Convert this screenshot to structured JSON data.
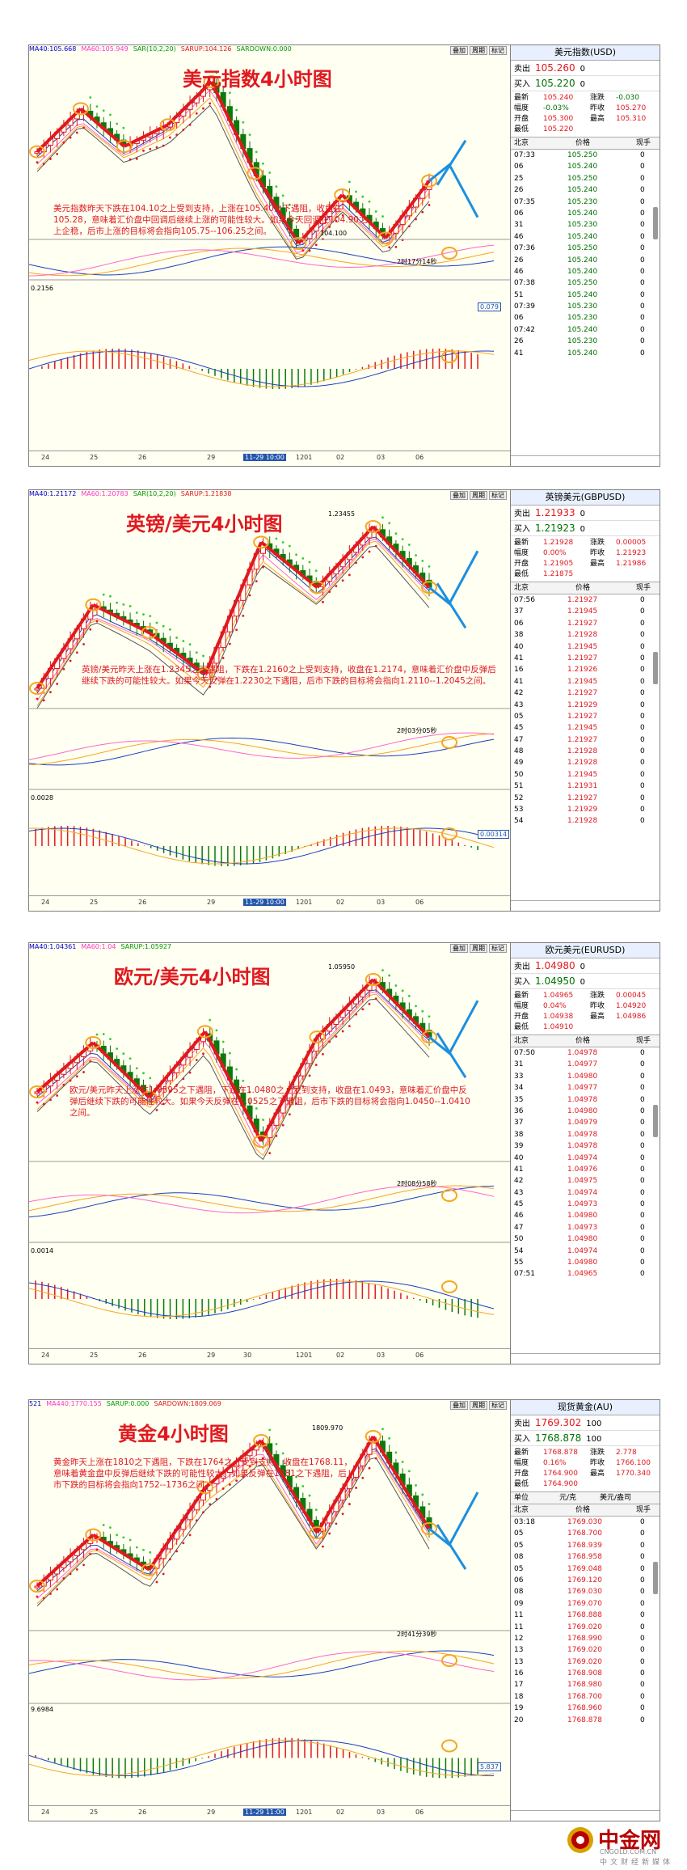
{
  "colors": {
    "red": "#e0191f",
    "green": "#007000",
    "blue": "#1b8fe0",
    "orange": "#f5a623"
  },
  "panels": [
    {
      "title": "美元指数4小时图",
      "topbar": [
        "MA40:105.668",
        "MA60:105.949",
        "SAR(10,2,20)",
        "SARUP:104.126",
        "SARDOWN:0.000"
      ],
      "buttons": [
        "叠加",
        "周期",
        "标记"
      ],
      "note": "美元指数昨天下跌在104.10之上受到支持，上涨在105.40之下遇阻，收盘在105.28，意味着汇价盘中回调后继续上涨的可能性较大。如果今天回调在104.90之上企稳，后市上涨的目标将会指向105.75--106.25之间。",
      "low_label": "104.100",
      "timestamp": "2时17分14秒",
      "macd_label": "0.2156",
      "macd_tag": "0.079",
      "xaxis": [
        "24",
        "25",
        "26",
        "29",
        "11-29 10:00",
        "1201",
        "02",
        "03",
        "06"
      ],
      "quote": {
        "name": "美元指数(USD)",
        "sell_label": "卖出",
        "sell": "105.260",
        "sell_tail": "0",
        "buy_label": "买入",
        "buy": "105.220",
        "buy_tail": "0",
        "stats": [
          [
            "最新",
            "105.240",
            "涨跌",
            "-0.030"
          ],
          [
            "幅度",
            "-0.03%",
            "昨收",
            "105.270"
          ],
          [
            "开盘",
            "105.300",
            "最高",
            "105.310"
          ],
          [
            "最低",
            "105.220",
            "",
            ""
          ]
        ],
        "cols": [
          "北京",
          "价格",
          "现手"
        ],
        "ticks": [
          [
            "07:33",
            "105.250",
            "0"
          ],
          [
            "06",
            "105.240",
            "0"
          ],
          [
            "25",
            "105.250",
            "0"
          ],
          [
            "26",
            "105.240",
            "0"
          ],
          [
            "07:35",
            "105.230",
            "0"
          ],
          [
            "06",
            "105.240",
            "0"
          ],
          [
            "31",
            "105.230",
            "0"
          ],
          [
            "46",
            "105.240",
            "0"
          ],
          [
            "07:36",
            "105.250",
            "0"
          ],
          [
            "26",
            "105.240",
            "0"
          ],
          [
            "46",
            "105.240",
            "0"
          ],
          [
            "07:38",
            "105.250",
            "0"
          ],
          [
            "51",
            "105.240",
            "0"
          ],
          [
            "07:39",
            "105.230",
            "0"
          ],
          [
            "06",
            "105.230",
            "0"
          ],
          [
            "07:42",
            "105.240",
            "0"
          ],
          [
            "26",
            "105.230",
            "0"
          ],
          [
            "41",
            "105.240",
            "0"
          ]
        ]
      }
    },
    {
      "title": "英镑/美元4小时图",
      "topbar": [
        "MA40:1.21172",
        "MA60:1.20783",
        "SAR(10,2,20)",
        "SARUP:1.21838"
      ],
      "buttons": [
        "叠加",
        "周期",
        "标记"
      ],
      "note": "英镑/美元昨天上涨在1.2345之下遇阻，下跌在1.2160之上受到支持，收盘在1.2174，意味着汇价盘中反弹后继续下跌的可能性较大。如果今天反弹在1.2230之下遇阻，后市下跌的目标将会指向1.2110--1.2045之间。",
      "high_label": "1.23455",
      "timestamp": "2时03分05秒",
      "macd_label": "0.0028",
      "macd_tag": "0.00314",
      "xaxis": [
        "24",
        "25",
        "26",
        "29",
        "11-29 10:00",
        "1201",
        "02",
        "03",
        "06"
      ],
      "quote": {
        "name": "英镑美元(GBPUSD)",
        "sell_label": "卖出",
        "sell": "1.21933",
        "sell_tail": "0",
        "buy_label": "买入",
        "buy": "1.21923",
        "buy_tail": "0",
        "stats": [
          [
            "最新",
            "1.21928",
            "涨跌",
            "0.00005"
          ],
          [
            "幅度",
            "0.00%",
            "昨收",
            "1.21923"
          ],
          [
            "开盘",
            "1.21905",
            "最高",
            "1.21986"
          ],
          [
            "最低",
            "1.21875",
            "",
            ""
          ]
        ],
        "cols": [
          "北京",
          "价格",
          "现手"
        ],
        "ticks": [
          [
            "07:56",
            "1.21927",
            "0"
          ],
          [
            "37",
            "1.21945",
            "0"
          ],
          [
            "06",
            "1.21927",
            "0"
          ],
          [
            "38",
            "1.21928",
            "0"
          ],
          [
            "40",
            "1.21945",
            "0"
          ],
          [
            "41",
            "1.21927",
            "0"
          ],
          [
            "16",
            "1.21926",
            "0"
          ],
          [
            "41",
            "1.21945",
            "0"
          ],
          [
            "42",
            "1.21927",
            "0"
          ],
          [
            "43",
            "1.21929",
            "0"
          ],
          [
            "05",
            "1.21927",
            "0"
          ],
          [
            "45",
            "1.21945",
            "0"
          ],
          [
            "47",
            "1.21927",
            "0"
          ],
          [
            "48",
            "1.21928",
            "0"
          ],
          [
            "49",
            "1.21928",
            "0"
          ],
          [
            "50",
            "1.21945",
            "0"
          ],
          [
            "51",
            "1.21931",
            "0"
          ],
          [
            "52",
            "1.21927",
            "0"
          ],
          [
            "53",
            "1.21929",
            "0"
          ],
          [
            "54",
            "1.21928",
            "0"
          ]
        ]
      }
    },
    {
      "title": "欧元/美元4小时图",
      "topbar": [
        "MA40:1.04361",
        "MA60:1.04",
        "SARUP:1.05927"
      ],
      "buttons": [
        "叠加",
        "周期",
        "标记"
      ],
      "note": "欧元/美元昨天上涨在1.0595之下遇阻，下跌在1.0480之上受到支持，收盘在1.0493，意味着汇价盘中反弹后继续下跌的可能性较大。如果今天反弹在1.0525之下遇阻，后市下跌的目标将会指向1.0450--1.0410之间。",
      "high_label": "1.05950",
      "timestamp": "2时08分58秒",
      "macd_label": "0.0014",
      "macd_tag": "",
      "xaxis": [
        "24",
        "25",
        "26",
        "29",
        "30",
        "1201",
        "02",
        "03",
        "06"
      ],
      "quote": {
        "name": "欧元美元(EURUSD)",
        "sell_label": "卖出",
        "sell": "1.04980",
        "sell_tail": "0",
        "buy_label": "买入",
        "buy": "1.04950",
        "buy_tail": "0",
        "stats": [
          [
            "最新",
            "1.04965",
            "涨跌",
            "0.00045"
          ],
          [
            "幅度",
            "0.04%",
            "昨收",
            "1.04920"
          ],
          [
            "开盘",
            "1.04938",
            "最高",
            "1.04986"
          ],
          [
            "最低",
            "1.04910",
            "",
            ""
          ]
        ],
        "cols": [
          "北京",
          "价格",
          "现手"
        ],
        "ticks": [
          [
            "07:50",
            "1.04978",
            "0"
          ],
          [
            "31",
            "1.04977",
            "0"
          ],
          [
            "33",
            "1.04980",
            "0"
          ],
          [
            "34",
            "1.04977",
            "0"
          ],
          [
            "35",
            "1.04978",
            "0"
          ],
          [
            "36",
            "1.04980",
            "0"
          ],
          [
            "37",
            "1.04979",
            "0"
          ],
          [
            "38",
            "1.04978",
            "0"
          ],
          [
            "39",
            "1.04978",
            "0"
          ],
          [
            "40",
            "1.04974",
            "0"
          ],
          [
            "41",
            "1.04976",
            "0"
          ],
          [
            "42",
            "1.04975",
            "0"
          ],
          [
            "43",
            "1.04974",
            "0"
          ],
          [
            "45",
            "1.04973",
            "0"
          ],
          [
            "46",
            "1.04980",
            "0"
          ],
          [
            "47",
            "1.04973",
            "0"
          ],
          [
            "50",
            "1.04980",
            "0"
          ],
          [
            "54",
            "1.04974",
            "0"
          ],
          [
            "55",
            "1.04980",
            "0"
          ],
          [
            "07:51",
            "1.04965",
            "0"
          ]
        ]
      }
    },
    {
      "title": "黄金4小时图",
      "topbar": [
        "521",
        "MA440:1770.155",
        "SARUP:0.000",
        "SARDOWN:1809.069"
      ],
      "buttons": [
        "叠加",
        "周期",
        "标记"
      ],
      "note": "黄金昨天上涨在1810之下遇阻，下跌在1764之上受到支持，收盘在1768.11，意味着黄金盘中反弹后继续下跌的可能性较大。如果反弹在1781之下遇阻，后市下跌的目标将会指向1752--1736之间。",
      "high_label": "1809.970",
      "timestamp": "2时41分39秒",
      "macd_label": "9.6984",
      "macd_tag": "5.837",
      "xaxis": [
        "24",
        "25",
        "26",
        "29",
        "11-29 11:00",
        "1201",
        "02",
        "03",
        "06"
      ],
      "quote": {
        "name": "现货黄金(AU)",
        "sell_label": "卖出",
        "sell": "1769.302",
        "sell_tail": "100",
        "buy_label": "买入",
        "buy": "1768.878",
        "buy_tail": "100",
        "stats": [
          [
            "最新",
            "1768.878",
            "涨跌",
            "2.778"
          ],
          [
            "幅度",
            "0.16%",
            "昨收",
            "1766.100"
          ],
          [
            "开盘",
            "1764.900",
            "最高",
            "1770.340"
          ],
          [
            "最低",
            "1764.900",
            "",
            ""
          ]
        ],
        "unit_row": [
          "单位",
          "元/克",
          "美元/盎司"
        ],
        "cols": [
          "北京",
          "价格",
          "现手"
        ],
        "ticks": [
          [
            "03:18",
            "1769.030",
            "0"
          ],
          [
            "05",
            "1768.700",
            "0"
          ],
          [
            "05",
            "1768.939",
            "0"
          ],
          [
            "08",
            "1768.958",
            "0"
          ],
          [
            "05",
            "1769.048",
            "0"
          ],
          [
            "06",
            "1769.120",
            "0"
          ],
          [
            "08",
            "1769.030",
            "0"
          ],
          [
            "09",
            "1769.070",
            "0"
          ],
          [
            "11",
            "1768.888",
            "0"
          ],
          [
            "11",
            "1769.020",
            "0"
          ],
          [
            "12",
            "1768.990",
            "0"
          ],
          [
            "13",
            "1769.020",
            "0"
          ],
          [
            "13",
            "1769.020",
            "0"
          ],
          [
            "16",
            "1768.908",
            "0"
          ],
          [
            "17",
            "1768.980",
            "0"
          ],
          [
            "18",
            "1768.700",
            "0"
          ],
          [
            "19",
            "1768.960",
            "0"
          ],
          [
            "20",
            "1768.878",
            "0"
          ]
        ]
      }
    }
  ],
  "logo": {
    "name": "中金网",
    "domain": "CNGOLD.COM.CN",
    "slogan": "中文财经新媒体"
  },
  "chart_data": [
    {
      "type": "line",
      "title": "美元指数4小时图",
      "series": [
        {
          "values": [
            105.8,
            106.6,
            105.9,
            106.3,
            107.1,
            105.4,
            104.1,
            105.0,
            104.2,
            105.26
          ]
        }
      ]
    },
    {
      "type": "line",
      "title": "英镑/美元4小时图",
      "series": [
        {
          "values": [
            1.188,
            1.212,
            1.204,
            1.192,
            1.23,
            1.217,
            1.2345,
            1.217
          ]
        }
      ]
    },
    {
      "type": "line",
      "title": "欧元/美元4小时图",
      "series": [
        {
          "values": [
            1.039,
            1.048,
            1.038,
            1.05,
            1.03,
            1.049,
            1.0595,
            1.049
          ]
        }
      ]
    },
    {
      "type": "line",
      "title": "黄金4小时图",
      "series": [
        {
          "values": [
            1737,
            1762,
            1745,
            1785,
            1808,
            1763,
            1809.97,
            1765
          ]
        }
      ]
    }
  ]
}
